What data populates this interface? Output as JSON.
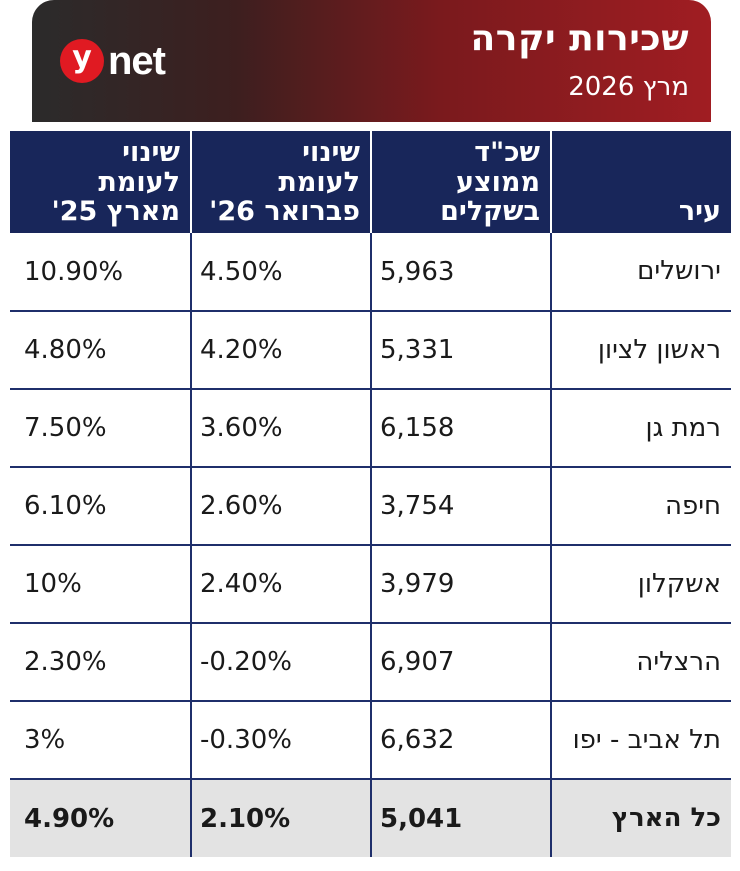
{
  "header": {
    "title": "שכירות יקרה",
    "subtitle": "מרץ 2026",
    "logo": {
      "mark": "y",
      "text": "net"
    }
  },
  "colors": {
    "header_dark": "#2b2b2b",
    "header_red": "#a01d22",
    "table_header_bg": "#18265a",
    "logo_red": "#e01a22",
    "total_row_bg": "#e3e3e3"
  },
  "table": {
    "columns": [
      {
        "lines": [
          "עיר"
        ]
      },
      {
        "lines": [
          "שכ\"ד",
          "ממוצע",
          "בשקלים"
        ]
      },
      {
        "lines": [
          "שינוי",
          "לעומת",
          "פברואר 26'"
        ]
      },
      {
        "lines": [
          "שינוי",
          "לעומת",
          "מארץ 25'"
        ]
      }
    ],
    "rows": [
      {
        "city": "ירושלים",
        "rent": "5,963",
        "vs_feb": "4.50%",
        "vs_mar": "10.90%"
      },
      {
        "city": "ראשון לציון",
        "rent": "5,331",
        "vs_feb": "4.20%",
        "vs_mar": "4.80%"
      },
      {
        "city": "רמת גן",
        "rent": "6,158",
        "vs_feb": "3.60%",
        "vs_mar": "7.50%"
      },
      {
        "city": "חיפה",
        "rent": "3,754",
        "vs_feb": "2.60%",
        "vs_mar": "6.10%"
      },
      {
        "city": "אשקלון",
        "rent": "3,979",
        "vs_feb": "2.40%",
        "vs_mar": "10%"
      },
      {
        "city": "הרצליה",
        "rent": "6,907",
        "vs_feb": "-0.20%",
        "vs_mar": "2.30%"
      },
      {
        "city": "תל אביב - יפו",
        "rent": "6,632",
        "vs_feb": "-0.30%",
        "vs_mar": "3%"
      }
    ],
    "total": {
      "city": "כל הארץ",
      "rent": "5,041",
      "vs_feb": "2.10%",
      "vs_mar": "4.90%"
    }
  }
}
